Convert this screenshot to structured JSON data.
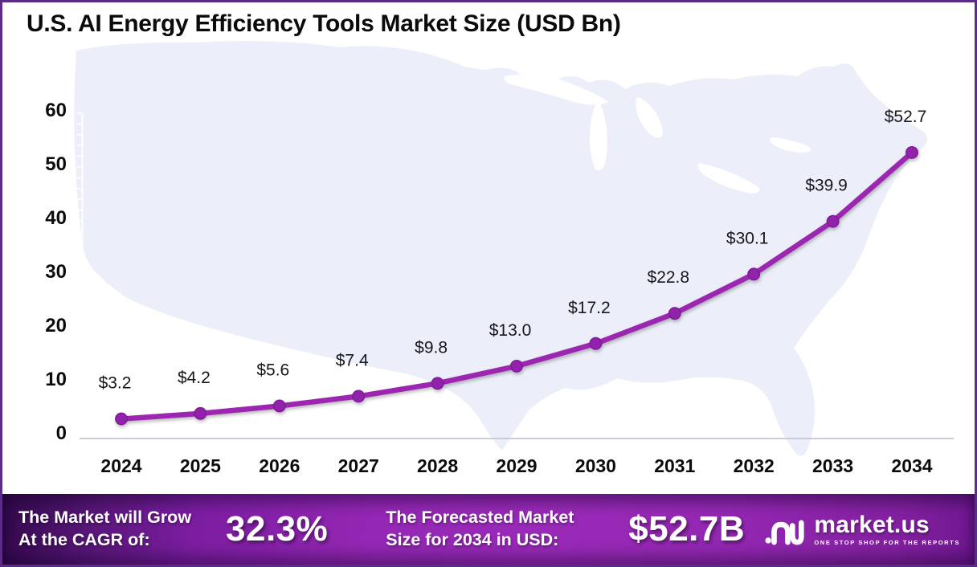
{
  "header": {
    "title": "U.S. AI Energy Efficiency Tools Market Size (USD Bn)"
  },
  "chart_data": {
    "type": "line",
    "title": "U.S. AI Energy Efficiency Tools Market Size (USD Bn)",
    "categories": [
      "2024",
      "2025",
      "2026",
      "2027",
      "2028",
      "2029",
      "2030",
      "2031",
      "2032",
      "2033",
      "2034"
    ],
    "series": [
      {
        "name": "Market Size (USD Bn)",
        "values": [
          3.2,
          4.2,
          5.6,
          7.4,
          9.8,
          13.0,
          17.2,
          22.8,
          30.1,
          39.9,
          52.7
        ],
        "data_labels": [
          "$3.2",
          "$4.2",
          "$5.6",
          "$7.4",
          "$9.8",
          "$13.0",
          "$17.2",
          "$22.8",
          "$30.1",
          "$39.9",
          "$52.7"
        ]
      }
    ],
    "y_ticks": [
      "0",
      "10",
      "20",
      "30",
      "40",
      "50",
      "60"
    ],
    "ylim": [
      0,
      60
    ],
    "minor_tick_step": 2,
    "grid": "off",
    "legend": "none",
    "background": "usa-map-silhouette",
    "colors": {
      "line": "#9c27b0",
      "marker": "#9222ab",
      "marker_edge": "#7d1b94",
      "map_fill": "#eceff9",
      "baseline": "#c9cdd6",
      "minor_tick": "#ffffff",
      "data_label": "#16161c",
      "axis_text": "#0c0c0c"
    }
  },
  "footer": {
    "cagr_label_line1": "The Market will Grow",
    "cagr_label_line2": "At the CAGR of:",
    "cagr_value": "32.3%",
    "forecast_label_line1": "The Forecasted Market",
    "forecast_label_line2": "Size for 2034 in USD:",
    "forecast_value": "$52.7B",
    "logo": {
      "name": "market.us",
      "tagline": "ONE STOP SHOP FOR THE REPORTS"
    }
  }
}
